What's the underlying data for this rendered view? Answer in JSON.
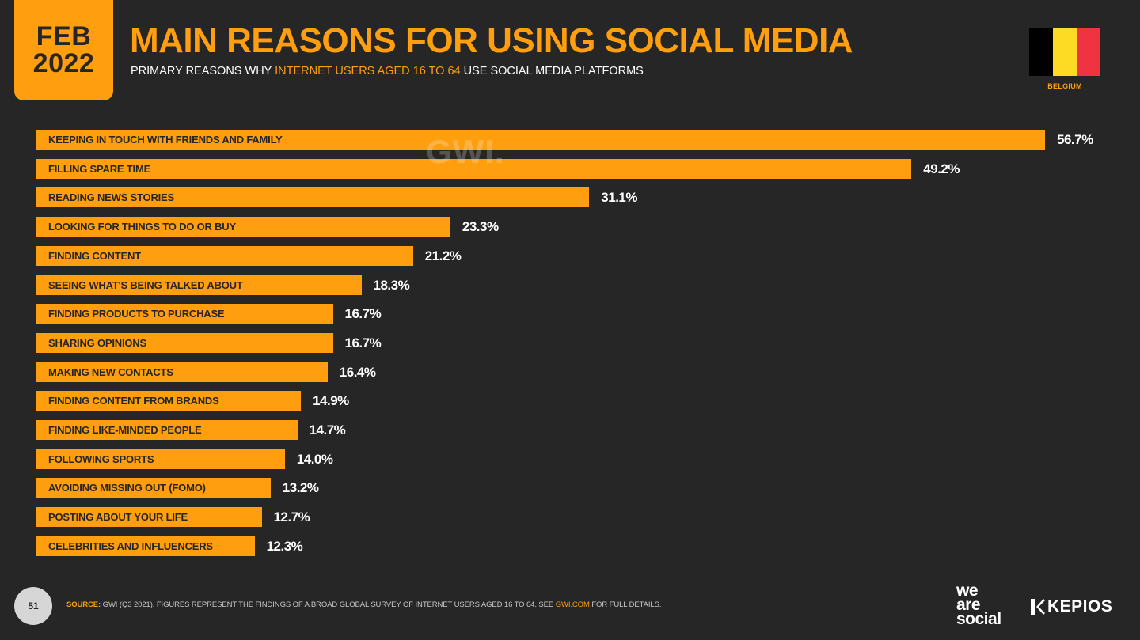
{
  "header": {
    "date_month": "FEB",
    "date_year": "2022",
    "title": "MAIN REASONS FOR USING SOCIAL MEDIA",
    "subtitle_pre": "PRIMARY REASONS WHY ",
    "subtitle_highlight": "INTERNET USERS AGED 16 TO 64",
    "subtitle_post": " USE SOCIAL MEDIA PLATFORMS",
    "country": "BELGIUM",
    "flag_colors": [
      "#000000",
      "#fdda24",
      "#ef3340"
    ]
  },
  "watermark": "GWI.",
  "colors": {
    "accent": "#ff9e0f",
    "background": "#262626",
    "bar_text": "#262626",
    "value_text": "#ffffff"
  },
  "chart_data": {
    "type": "bar",
    "orientation": "horizontal",
    "title": "MAIN REASONS FOR USING SOCIAL MEDIA",
    "xlabel": "",
    "ylabel": "",
    "xlim": [
      0,
      56.7
    ],
    "grid": false,
    "legend": "none",
    "categories": [
      "KEEPING IN TOUCH WITH FRIENDS AND FAMILY",
      "FILLING SPARE TIME",
      "READING NEWS STORIES",
      "LOOKING FOR THINGS TO DO OR BUY",
      "FINDING CONTENT",
      "SEEING WHAT'S BEING TALKED ABOUT",
      "FINDING PRODUCTS TO PURCHASE",
      "SHARING OPINIONS",
      "MAKING NEW CONTACTS",
      "FINDING CONTENT FROM BRANDS",
      "FINDING LIKE-MINDED PEOPLE",
      "FOLLOWING SPORTS",
      "AVOIDING MISSING OUT (FOMO)",
      "POSTING ABOUT YOUR LIFE",
      "CELEBRITIES AND INFLUENCERS"
    ],
    "values": [
      56.7,
      49.2,
      31.1,
      23.3,
      21.2,
      18.3,
      16.7,
      16.7,
      16.4,
      14.9,
      14.7,
      14.0,
      13.2,
      12.7,
      12.3
    ],
    "value_labels": [
      "56.7%",
      "49.2%",
      "31.1%",
      "23.3%",
      "21.2%",
      "18.3%",
      "16.7%",
      "16.7%",
      "16.4%",
      "14.9%",
      "14.7%",
      "14.0%",
      "13.2%",
      "12.7%",
      "12.3%"
    ]
  },
  "footer": {
    "page_number": "51",
    "source_key": "SOURCE:",
    "source_text": " GWI (Q3 2021). FIGURES REPRESENT THE FINDINGS OF A BROAD GLOBAL SURVEY OF INTERNET USERS AGED 16 TO 64. SEE ",
    "source_link": "GWI.COM",
    "source_tail": " FOR FULL DETAILS.",
    "logo_line1": "we",
    "logo_line2": "are",
    "logo_line3": "social",
    "partner": "KEPIOS"
  }
}
